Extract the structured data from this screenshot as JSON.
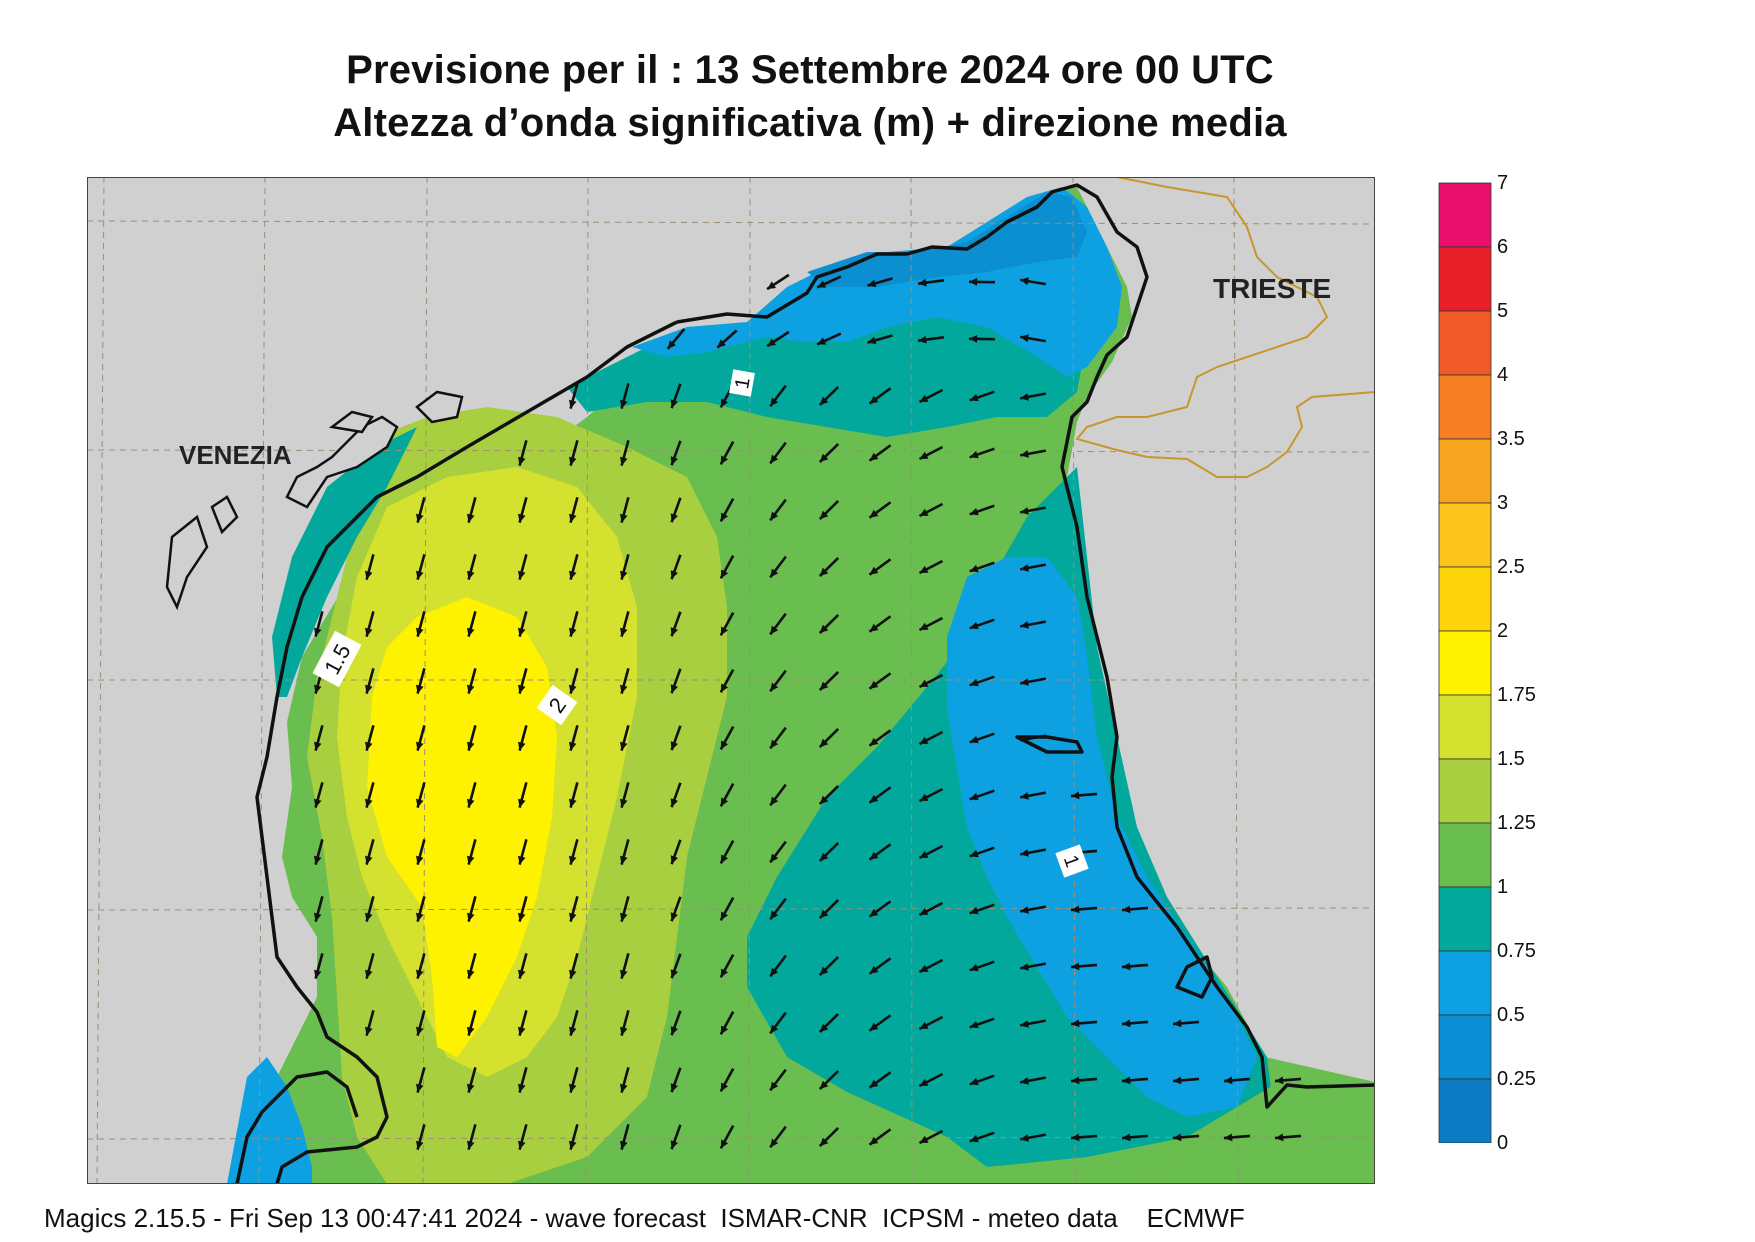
{
  "title": {
    "line1": "Previsione per il  :  13 Settembre 2024   ore 00 UTC",
    "line2": "Altezza d’onda significativa (m) + direzione media"
  },
  "map": {
    "cities": [
      "VENEZIA",
      "TRIESTE"
    ],
    "contour_labels": [
      "1.5",
      "2",
      "1",
      "1"
    ],
    "land_color": "#d0d0d0",
    "coast_color": "#111111",
    "border_color": "#c8962e",
    "arrow_direction": "mostly south / south-west"
  },
  "legend": {
    "labels": [
      "7",
      "6",
      "5",
      "4",
      "3.5",
      "3",
      "2.5",
      "2",
      "1.75",
      "1.5",
      "1.25",
      "1",
      "0.75",
      "0.5",
      "0.25",
      "0"
    ],
    "colors": [
      "#e8106a",
      "#e8202a",
      "#f05a28",
      "#f57f22",
      "#f7a521",
      "#fac41c",
      "#fdd40a",
      "#fff200",
      "#d5e12f",
      "#a8cf3f",
      "#6abd4f",
      "#03a89d",
      "#0ea1e2",
      "#0a8fd4",
      "#0b7cc4",
      "#0a68b8"
    ]
  },
  "footer": "Magics 2.15.5 - Fri Sep 13 00:47:41 2024 - wave forecast  ISMAR-CNR  ICPSM - meteo data    ECMWF"
}
